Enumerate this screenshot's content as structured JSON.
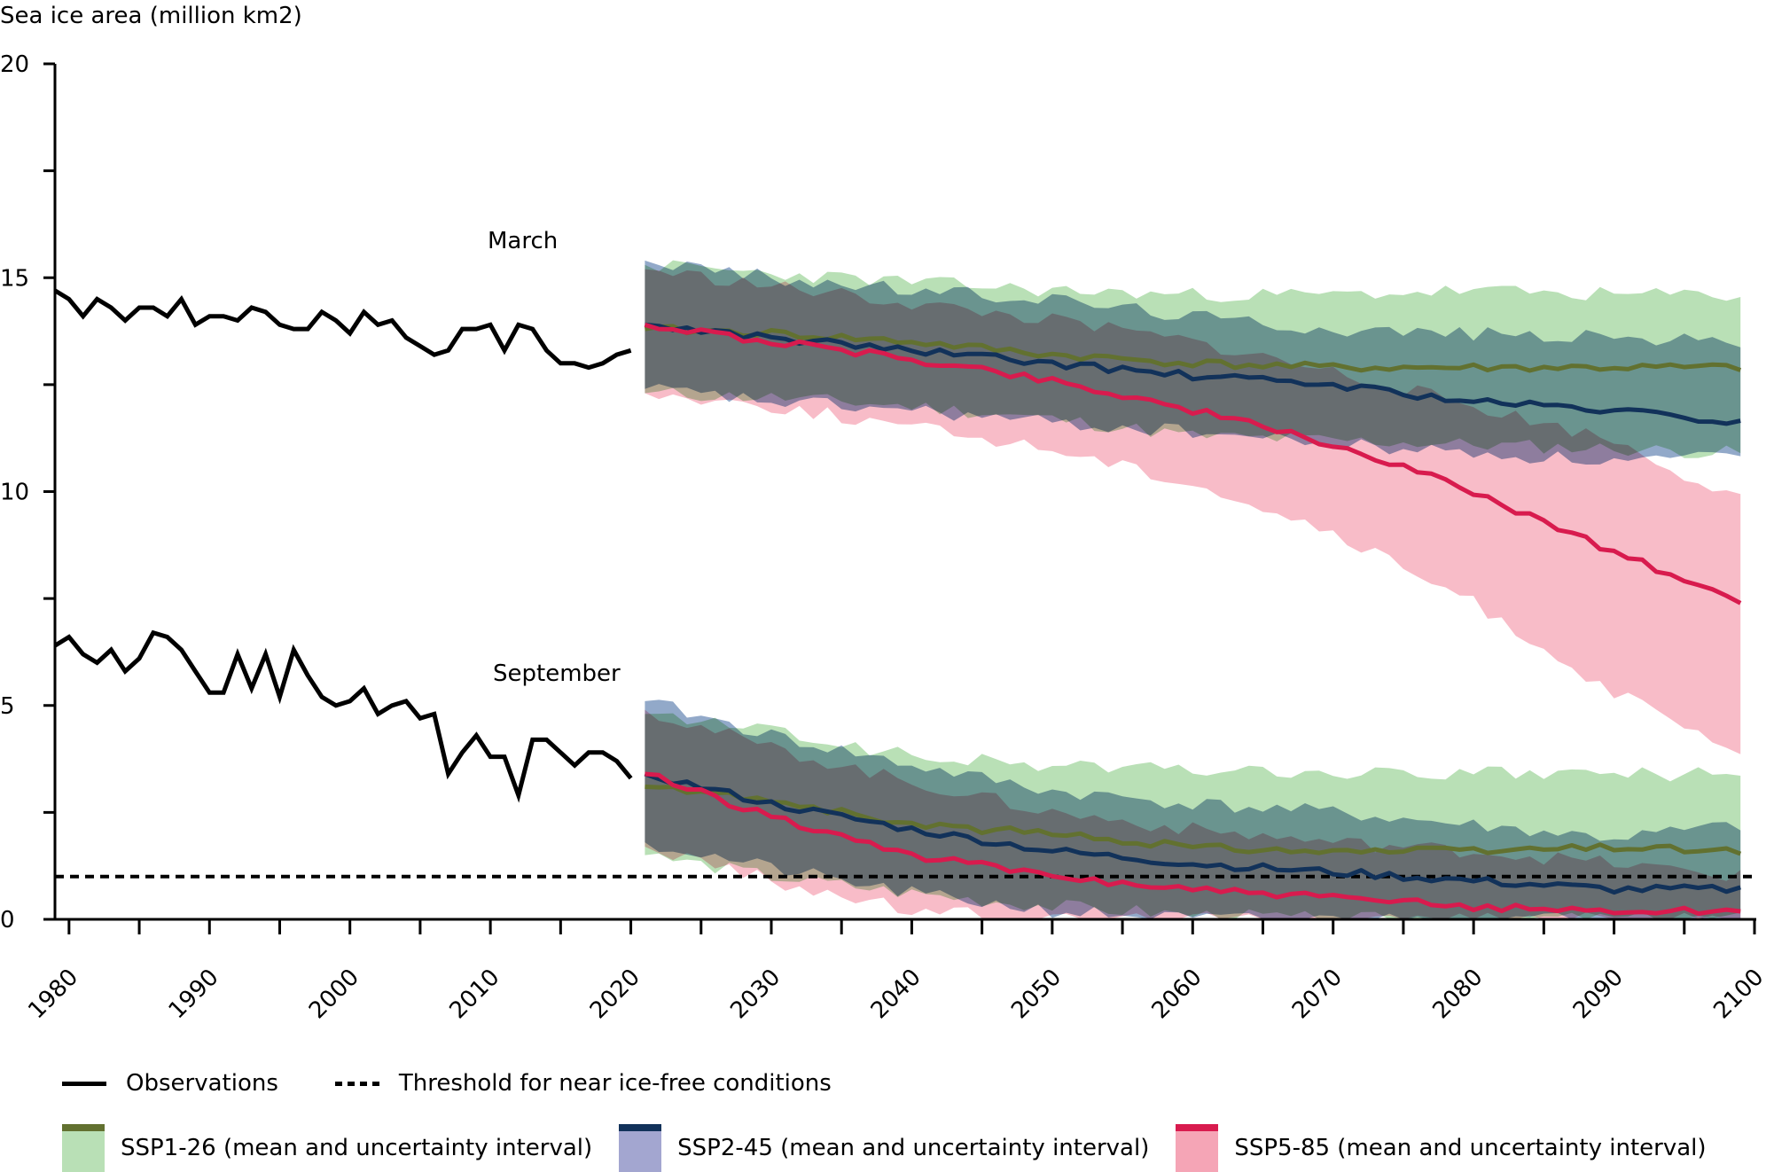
{
  "chart_data": {
    "type": "line",
    "title": "",
    "ylabel": "Sea ice area (million km2)",
    "xlabel": "",
    "xlim": [
      1979,
      2100
    ],
    "ylim": [
      0,
      20
    ],
    "y_ticks": [
      0,
      5,
      10,
      15,
      20
    ],
    "y_minor_ticks": [
      2.5,
      7.5,
      12.5,
      17.5
    ],
    "x_ticks": [
      1980,
      1990,
      2000,
      2010,
      2020,
      2030,
      2040,
      2050,
      2060,
      2070,
      2080,
      2090,
      2100
    ],
    "x_tick_labels": [
      "1980",
      "1990",
      "2000",
      "2010",
      "2020",
      "2030",
      "2040",
      "2050",
      "2060",
      "2070",
      "2080",
      "2090",
      "2100"
    ],
    "grid": false,
    "annotations": [
      {
        "text": "March",
        "x": 1996,
        "y": 15.8
      },
      {
        "text": "September",
        "x": 1997,
        "y": 5.7
      }
    ],
    "threshold": {
      "name": "Threshold for near ice-free conditions",
      "value": 1.0,
      "style": "dotted",
      "color": "#000000"
    },
    "observations": {
      "name": "Observations",
      "color": "#000000",
      "x": [
        1979,
        1980,
        1981,
        1982,
        1983,
        1984,
        1985,
        1986,
        1987,
        1988,
        1989,
        1990,
        1991,
        1992,
        1993,
        1994,
        1995,
        1996,
        1997,
        1998,
        1999,
        2000,
        2001,
        2002,
        2003,
        2004,
        2005,
        2006,
        2007,
        2008,
        2009,
        2010,
        2011,
        2012,
        2013,
        2014,
        2015,
        2016,
        2017,
        2018,
        2019,
        2020
      ],
      "march": [
        14.7,
        14.5,
        14.1,
        14.5,
        14.3,
        14.0,
        14.3,
        14.3,
        14.1,
        14.5,
        13.9,
        14.1,
        14.1,
        14.0,
        14.3,
        14.2,
        13.9,
        13.8,
        13.8,
        14.2,
        14.0,
        13.7,
        14.2,
        13.9,
        14.0,
        13.6,
        13.4,
        13.2,
        13.3,
        13.8,
        13.8,
        13.9,
        13.3,
        13.9,
        13.8,
        13.3,
        13.0,
        13.0,
        12.9,
        13.0,
        13.2,
        13.3
      ],
      "september": [
        6.4,
        6.6,
        6.2,
        6.0,
        6.3,
        5.8,
        6.1,
        6.7,
        6.6,
        6.3,
        5.8,
        5.3,
        5.3,
        6.2,
        5.4,
        6.2,
        5.2,
        6.3,
        5.7,
        5.2,
        5.0,
        5.1,
        5.4,
        4.8,
        5.0,
        5.1,
        4.7,
        4.8,
        3.4,
        3.9,
        4.3,
        3.8,
        3.8,
        2.9,
        4.2,
        4.2,
        3.9,
        3.6,
        3.9,
        3.9,
        3.7,
        3.3
      ]
    },
    "series": [
      {
        "name": "SSP1-26 (mean and uncertainty interval)",
        "line_color": "#627130",
        "band_color": "#b9e0b6",
        "years": [
          2021,
          2030,
          2040,
          2050,
          2060,
          2070,
          2080,
          2090,
          2099
        ],
        "march_mean": [
          13.8,
          13.7,
          13.5,
          13.2,
          13.0,
          12.9,
          12.9,
          12.9,
          12.9
        ],
        "march_low": [
          12.3,
          12.2,
          12.0,
          11.7,
          11.3,
          11.2,
          11.1,
          11.0,
          10.9
        ],
        "march_high": [
          15.3,
          15.1,
          14.9,
          14.7,
          14.6,
          14.6,
          14.7,
          14.6,
          14.6
        ],
        "september_mean": [
          3.1,
          2.8,
          2.2,
          2.0,
          1.7,
          1.6,
          1.6,
          1.7,
          1.6
        ],
        "september_low": [
          1.5,
          1.0,
          0.6,
          0.3,
          0.1,
          0.0,
          0.0,
          0.0,
          0.0
        ],
        "september_high": [
          4.8,
          4.4,
          3.8,
          3.6,
          3.5,
          3.4,
          3.4,
          3.4,
          3.4
        ]
      },
      {
        "name": "SSP2-45 (mean and uncertainty interval)",
        "line_color": "#12325a",
        "band_color": "#7f9abf",
        "years": [
          2021,
          2030,
          2040,
          2050,
          2060,
          2070,
          2080,
          2090,
          2099
        ],
        "march_mean": [
          13.9,
          13.6,
          13.3,
          13.0,
          12.7,
          12.5,
          12.1,
          11.9,
          11.6
        ],
        "march_low": [
          12.4,
          12.1,
          11.9,
          11.6,
          11.4,
          11.1,
          10.9,
          10.7,
          10.8
        ],
        "march_high": [
          15.4,
          15.0,
          14.7,
          14.5,
          14.1,
          13.8,
          13.7,
          13.6,
          13.5
        ],
        "september_mean": [
          3.4,
          2.7,
          2.1,
          1.6,
          1.3,
          1.1,
          0.9,
          0.7,
          0.7
        ],
        "september_low": [
          1.8,
          1.2,
          0.6,
          0.2,
          0.0,
          0.0,
          0.0,
          0.0,
          0.0
        ],
        "september_high": [
          5.1,
          4.3,
          3.6,
          3.0,
          2.7,
          2.5,
          2.2,
          1.9,
          2.2
        ]
      },
      {
        "name": "SSP5-85 (mean and uncertainty interval)",
        "line_color": "#d81b4e",
        "band_color": "#f5a5b6",
        "years": [
          2021,
          2030,
          2040,
          2050,
          2060,
          2070,
          2080,
          2090,
          2099
        ],
        "march_mean": [
          13.9,
          13.5,
          13.1,
          12.6,
          11.9,
          11.1,
          10.0,
          8.6,
          7.4
        ],
        "march_low": [
          12.3,
          12.0,
          11.5,
          11.0,
          10.2,
          9.0,
          7.4,
          5.3,
          3.8
        ],
        "march_high": [
          15.2,
          14.8,
          14.4,
          14.0,
          13.5,
          12.8,
          12.0,
          11.2,
          9.8
        ],
        "september_mean": [
          3.4,
          2.4,
          1.5,
          1.0,
          0.7,
          0.5,
          0.3,
          0.2,
          0.2
        ],
        "september_low": [
          1.7,
          0.9,
          0.2,
          0.0,
          0.0,
          0.0,
          0.0,
          0.0,
          0.0
        ],
        "september_high": [
          4.9,
          4.0,
          3.2,
          2.5,
          2.1,
          1.8,
          1.6,
          1.3,
          1.0
        ]
      }
    ],
    "overlap_color": "#a46e93",
    "legend": {
      "placement": "bottom",
      "rows": [
        [
          {
            "label": "Observations",
            "kind": "line",
            "color": "#000000"
          },
          {
            "label": "Threshold for near ice-free conditions",
            "kind": "dotted",
            "color": "#000000"
          }
        ],
        [
          {
            "label": "SSP1-26 (mean and uncertainty interval)",
            "kind": "band",
            "line_color": "#627130",
            "band_color": "#b9e0b6"
          },
          {
            "label": "SSP2-45 (mean and uncertainty interval)",
            "kind": "band",
            "line_color": "#12325a",
            "band_color": "#a3a6d0"
          },
          {
            "label": "SSP5-85 (mean and uncertainty interval)",
            "kind": "band",
            "line_color": "#d81b4e",
            "band_color": "#f5a5b6"
          }
        ]
      ]
    }
  }
}
